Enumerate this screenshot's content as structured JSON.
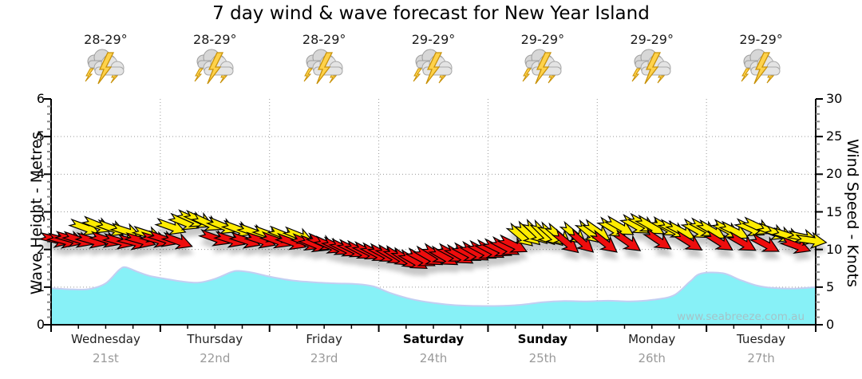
{
  "title": "7 day wind & wave forecast for New Year Island",
  "watermark": "www.seabreeze.com.au",
  "colors": {
    "background": "#ffffff",
    "wave_fill": "#87F1F7",
    "wave_edge": "#c3cef2",
    "arrow_red": "#EE1111",
    "arrow_yellow": "#FFEC00",
    "arrow_outline": "#000000",
    "grid": "#9a9a9a",
    "axis": "#000000",
    "minor_tick": "#888888",
    "day_text": "#1f1f1f",
    "date_text": "#9a9a9a",
    "watermark_text": "#a3c3c8"
  },
  "days": [
    {
      "name": "Wednesday",
      "date": "21st",
      "temp": "28-29°",
      "icon": "storm-icon",
      "bold": false
    },
    {
      "name": "Thursday",
      "date": "22nd",
      "temp": "28-29°",
      "icon": "storm-icon",
      "bold": false
    },
    {
      "name": "Friday",
      "date": "23rd",
      "temp": "28-29°",
      "icon": "storm-icon",
      "bold": false
    },
    {
      "name": "Saturday",
      "date": "24th",
      "temp": "29-29°",
      "icon": "storm-icon",
      "bold": true
    },
    {
      "name": "Sunday",
      "date": "25th",
      "temp": "29-29°",
      "icon": "storm-icon",
      "bold": true
    },
    {
      "name": "Monday",
      "date": "26th",
      "temp": "29-29°",
      "icon": "storm-icon",
      "bold": false
    },
    {
      "name": "Tuesday",
      "date": "27th",
      "temp": "29-29°",
      "icon": "storm-icon",
      "bold": false
    }
  ],
  "axes": {
    "left": {
      "label": "Wave Height - Metres",
      "ticks": [
        0,
        1,
        2,
        3,
        4,
        5,
        6
      ],
      "minor_step": 0.2,
      "range": [
        0,
        6
      ]
    },
    "right": {
      "label": "Wind Speed - Knots",
      "ticks": [
        0,
        5,
        10,
        15,
        20,
        25,
        30
      ],
      "minor_step": 1,
      "range": [
        0,
        30
      ]
    },
    "bottom": {
      "minor_per_day": 4
    }
  },
  "chart_data": {
    "type": "area",
    "x_unit": "days",
    "x_range": [
      0,
      7
    ],
    "grid": {
      "h_lines_m": [
        1,
        2,
        3,
        4,
        5
      ],
      "v_lines_day": [
        1,
        2,
        3,
        4,
        5,
        6
      ]
    },
    "wave": {
      "name": "Wave Height",
      "unit": "m",
      "ylim": [
        0,
        6
      ],
      "points": [
        [
          0.0,
          0.97
        ],
        [
          0.2,
          0.94
        ],
        [
          0.35,
          0.95
        ],
        [
          0.5,
          1.1
        ],
        [
          0.62,
          1.45
        ],
        [
          0.68,
          1.53
        ],
        [
          0.78,
          1.42
        ],
        [
          0.9,
          1.3
        ],
        [
          1.05,
          1.22
        ],
        [
          1.2,
          1.15
        ],
        [
          1.35,
          1.12
        ],
        [
          1.5,
          1.22
        ],
        [
          1.65,
          1.4
        ],
        [
          1.72,
          1.43
        ],
        [
          1.85,
          1.38
        ],
        [
          2.0,
          1.28
        ],
        [
          2.2,
          1.18
        ],
        [
          2.4,
          1.13
        ],
        [
          2.6,
          1.1
        ],
        [
          2.8,
          1.08
        ],
        [
          2.95,
          1.02
        ],
        [
          3.1,
          0.85
        ],
        [
          3.3,
          0.68
        ],
        [
          3.5,
          0.58
        ],
        [
          3.7,
          0.52
        ],
        [
          3.9,
          0.5
        ],
        [
          4.1,
          0.5
        ],
        [
          4.3,
          0.53
        ],
        [
          4.5,
          0.6
        ],
        [
          4.7,
          0.63
        ],
        [
          4.9,
          0.62
        ],
        [
          5.1,
          0.64
        ],
        [
          5.3,
          0.62
        ],
        [
          5.5,
          0.66
        ],
        [
          5.7,
          0.78
        ],
        [
          5.85,
          1.15
        ],
        [
          5.95,
          1.36
        ],
        [
          6.15,
          1.37
        ],
        [
          6.3,
          1.2
        ],
        [
          6.45,
          1.05
        ],
        [
          6.6,
          0.98
        ],
        [
          6.8,
          0.96
        ],
        [
          7.0,
          1.0
        ]
      ]
    },
    "wind": {
      "name": "Wind Speed",
      "unit": "knots",
      "ylim": [
        0,
        30
      ],
      "arrows": [
        [
          0.04,
          11.3,
          "r",
          14
        ],
        [
          0.11,
          11.2,
          "r",
          15
        ],
        [
          0.18,
          11.4,
          "r",
          16
        ],
        [
          0.25,
          11.3,
          "r",
          18
        ],
        [
          0.31,
          12.9,
          "y",
          20
        ],
        [
          0.37,
          11.2,
          "r",
          16
        ],
        [
          0.43,
          13.2,
          "y",
          22
        ],
        [
          0.5,
          11.3,
          "r",
          18
        ],
        [
          0.56,
          12.8,
          "y",
          20
        ],
        [
          0.62,
          11.1,
          "r",
          16
        ],
        [
          0.69,
          12.4,
          "y",
          18
        ],
        [
          0.75,
          11.0,
          "r",
          15
        ],
        [
          0.82,
          11.2,
          "r",
          16
        ],
        [
          0.89,
          12.0,
          "y",
          18
        ],
        [
          0.96,
          11.3,
          "r",
          16
        ],
        [
          1.03,
          11.4,
          "r",
          18
        ],
        [
          1.1,
          13.0,
          "y",
          20
        ],
        [
          1.16,
          11.1,
          "r",
          20
        ],
        [
          1.22,
          13.6,
          "y",
          22
        ],
        [
          1.29,
          14.0,
          "y",
          24
        ],
        [
          1.36,
          13.9,
          "y",
          25
        ],
        [
          1.43,
          13.5,
          "y",
          25
        ],
        [
          1.5,
          11.5,
          "r",
          20
        ],
        [
          1.57,
          13.1,
          "y",
          22
        ],
        [
          1.64,
          11.3,
          "r",
          18
        ],
        [
          1.71,
          12.7,
          "y",
          20
        ],
        [
          1.78,
          11.2,
          "r",
          18
        ],
        [
          1.85,
          12.3,
          "y",
          20
        ],
        [
          1.92,
          11.2,
          "r",
          18
        ],
        [
          1.99,
          12.0,
          "y",
          20
        ],
        [
          2.06,
          11.2,
          "r",
          20
        ],
        [
          2.13,
          11.9,
          "y",
          22
        ],
        [
          2.2,
          11.0,
          "r",
          20
        ],
        [
          2.27,
          11.8,
          "y",
          22
        ],
        [
          2.34,
          10.9,
          "r",
          22
        ],
        [
          2.41,
          10.7,
          "r",
          22
        ],
        [
          2.48,
          10.9,
          "r",
          24
        ],
        [
          2.55,
          10.5,
          "r",
          24
        ],
        [
          2.62,
          10.3,
          "r",
          26
        ],
        [
          2.69,
          10.1,
          "r",
          26
        ],
        [
          2.76,
          10.0,
          "r",
          26
        ],
        [
          2.83,
          9.8,
          "r",
          28
        ],
        [
          2.9,
          9.7,
          "r",
          26
        ],
        [
          2.97,
          9.5,
          "r",
          28
        ],
        [
          3.04,
          9.4,
          "r",
          28
        ],
        [
          3.11,
          9.2,
          "r",
          30
        ],
        [
          3.18,
          9.0,
          "r",
          32
        ],
        [
          3.25,
          8.7,
          "r",
          34
        ],
        [
          3.32,
          8.5,
          "r",
          30
        ],
        [
          3.39,
          8.8,
          "r",
          28
        ],
        [
          3.46,
          9.0,
          "r",
          30
        ],
        [
          3.53,
          9.3,
          "r",
          32
        ],
        [
          3.6,
          9.0,
          "r",
          30
        ],
        [
          3.67,
          9.4,
          "r",
          28
        ],
        [
          3.74,
          9.2,
          "r",
          30
        ],
        [
          3.81,
          9.5,
          "r",
          28
        ],
        [
          3.88,
          9.6,
          "r",
          30
        ],
        [
          3.95,
          9.8,
          "r",
          28
        ],
        [
          4.02,
          9.9,
          "r",
          28
        ],
        [
          4.09,
          10.1,
          "r",
          26
        ],
        [
          4.16,
          10.3,
          "r",
          28
        ],
        [
          4.23,
          10.6,
          "r",
          26
        ],
        [
          4.3,
          11.8,
          "y",
          40
        ],
        [
          4.37,
          12.0,
          "y",
          42
        ],
        [
          4.44,
          12.2,
          "y",
          44
        ],
        [
          4.51,
          12.1,
          "y",
          45
        ],
        [
          4.58,
          11.9,
          "y",
          42
        ],
        [
          4.65,
          11.8,
          "y",
          40
        ],
        [
          4.72,
          10.9,
          "r",
          40
        ],
        [
          4.79,
          12.0,
          "y",
          40
        ],
        [
          4.86,
          11.0,
          "r",
          42
        ],
        [
          4.93,
          12.2,
          "y",
          40
        ],
        [
          5.0,
          12.4,
          "y",
          35
        ],
        [
          5.07,
          10.9,
          "r",
          38
        ],
        [
          5.14,
          12.8,
          "y",
          32
        ],
        [
          5.21,
          13.0,
          "y",
          30
        ],
        [
          5.28,
          11.0,
          "r",
          35
        ],
        [
          5.35,
          13.2,
          "y",
          30
        ],
        [
          5.42,
          13.4,
          "y",
          28
        ],
        [
          5.49,
          13.1,
          "y",
          30
        ],
        [
          5.56,
          11.2,
          "r",
          34
        ],
        [
          5.63,
          12.9,
          "y",
          30
        ],
        [
          5.7,
          12.6,
          "y",
          28
        ],
        [
          5.77,
          12.4,
          "y",
          28
        ],
        [
          5.84,
          11.0,
          "r",
          32
        ],
        [
          5.91,
          12.6,
          "y",
          30
        ],
        [
          5.98,
          12.8,
          "y",
          28
        ],
        [
          6.05,
          12.5,
          "y",
          30
        ],
        [
          6.12,
          11.0,
          "r",
          32
        ],
        [
          6.19,
          12.6,
          "y",
          28
        ],
        [
          6.26,
          12.4,
          "y",
          26
        ],
        [
          6.33,
          10.9,
          "r",
          30
        ],
        [
          6.4,
          12.8,
          "y",
          25
        ],
        [
          6.47,
          13.0,
          "y",
          25
        ],
        [
          6.54,
          10.7,
          "r",
          28
        ],
        [
          6.61,
          12.3,
          "y",
          22
        ],
        [
          6.68,
          12.0,
          "y",
          20
        ],
        [
          6.75,
          11.8,
          "y",
          18
        ],
        [
          6.82,
          10.5,
          "r",
          20
        ],
        [
          6.89,
          11.6,
          "y",
          12
        ],
        [
          6.96,
          11.2,
          "y",
          8
        ]
      ]
    }
  }
}
